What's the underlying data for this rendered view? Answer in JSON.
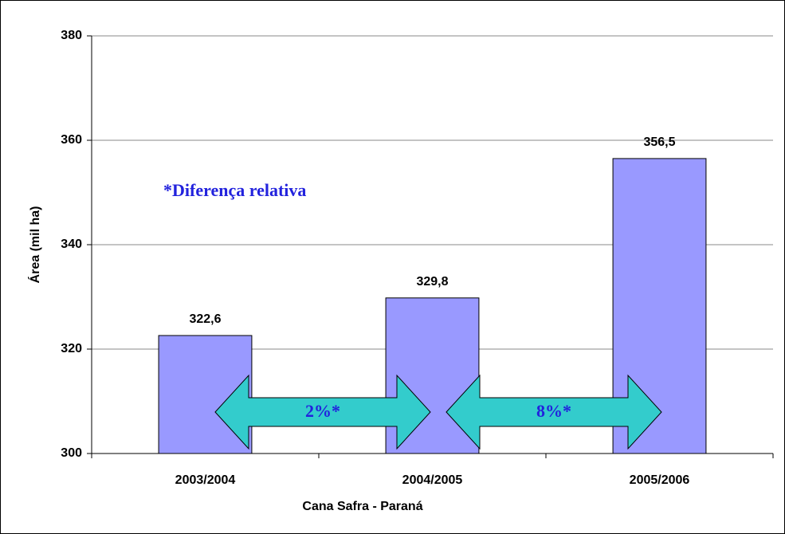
{
  "chart_data": {
    "type": "bar",
    "xlabel": "Cana Safra - Paraná",
    "ylabel": "Área (mil ha)",
    "categories": [
      "2003/2004",
      "2004/2005",
      "2005/2006"
    ],
    "values": [
      322.6,
      329.8,
      356.5
    ],
    "value_labels": [
      "322,6",
      "329,8",
      "356,5"
    ],
    "color": "#9999ff",
    "ylim": [
      300,
      380
    ],
    "yticks": [
      300,
      320,
      340,
      360,
      380
    ],
    "grid": true,
    "annotations": [
      "*Diferença relativa",
      "2%*",
      "8%*"
    ]
  }
}
